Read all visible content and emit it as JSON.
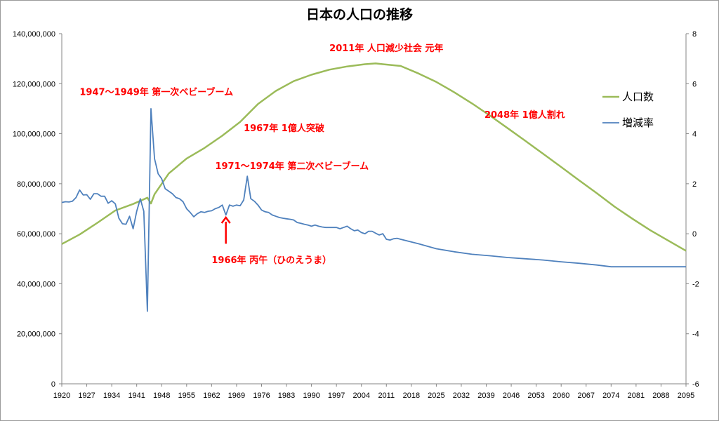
{
  "chart_data": {
    "type": "line",
    "title": "日本の人口の推移",
    "xlabel": "",
    "ylabel": "",
    "xlim": [
      1920,
      2095
    ],
    "ylim": [
      0,
      140000000
    ],
    "y2lim": [
      -6,
      8
    ],
    "x_ticks": [
      1920,
      1927,
      1934,
      1941,
      1948,
      1955,
      1962,
      1969,
      1976,
      1983,
      1990,
      1997,
      2004,
      2011,
      2018,
      2025,
      2032,
      2039,
      2046,
      2053,
      2060,
      2067,
      2074,
      2081,
      2088,
      2095
    ],
    "y_ticks": [
      {
        "v": 0,
        "label": "0"
      },
      {
        "v": 20000000,
        "label": "20,000,000"
      },
      {
        "v": 40000000,
        "label": "40,000,000"
      },
      {
        "v": 60000000,
        "label": "60,000,000"
      },
      {
        "v": 80000000,
        "label": "80,000,000"
      },
      {
        "v": 100000000,
        "label": "100,000,000"
      },
      {
        "v": 120000000,
        "label": "120,000,000"
      },
      {
        "v": 140000000,
        "label": "140,000,000"
      }
    ],
    "y2_ticks": [
      -6,
      -4,
      -2,
      0,
      2,
      4,
      6,
      8
    ],
    "grid": false,
    "legend_position": "right",
    "series": [
      {
        "name": "人口数",
        "axis": "left",
        "color": "#9bbb59",
        "points": [
          [
            1920,
            55900000
          ],
          [
            1925,
            59700000
          ],
          [
            1930,
            64400000
          ],
          [
            1935,
            69300000
          ],
          [
            1940,
            71900000
          ],
          [
            1944,
            74400000
          ],
          [
            1945,
            72100000
          ],
          [
            1946,
            75800000
          ],
          [
            1950,
            84100000
          ],
          [
            1955,
            90100000
          ],
          [
            1960,
            94300000
          ],
          [
            1965,
            99200000
          ],
          [
            1970,
            104700000
          ],
          [
            1972,
            107600000
          ],
          [
            1975,
            111900000
          ],
          [
            1980,
            117100000
          ],
          [
            1985,
            121000000
          ],
          [
            1990,
            123600000
          ],
          [
            1995,
            125600000
          ],
          [
            2000,
            126900000
          ],
          [
            2005,
            127800000
          ],
          [
            2008,
            128100000
          ],
          [
            2010,
            127800000
          ],
          [
            2015,
            127100000
          ],
          [
            2020,
            124100000
          ],
          [
            2025,
            120700000
          ],
          [
            2030,
            116600000
          ],
          [
            2035,
            112100000
          ],
          [
            2040,
            107300000
          ],
          [
            2045,
            102200000
          ],
          [
            2050,
            97100000
          ],
          [
            2055,
            91900000
          ],
          [
            2060,
            86700000
          ],
          [
            2065,
            81400000
          ],
          [
            2070,
            76200000
          ],
          [
            2075,
            70800000
          ],
          [
            2080,
            66000000
          ],
          [
            2085,
            61400000
          ],
          [
            2090,
            57300000
          ],
          [
            2095,
            53200000
          ]
        ]
      },
      {
        "name": "増減率",
        "axis": "right",
        "color": "#4f81bd",
        "points": [
          [
            1920,
            1.25
          ],
          [
            1921,
            1.28
          ],
          [
            1922,
            1.27
          ],
          [
            1923,
            1.3
          ],
          [
            1924,
            1.45
          ],
          [
            1925,
            1.75
          ],
          [
            1926,
            1.55
          ],
          [
            1927,
            1.56
          ],
          [
            1928,
            1.38
          ],
          [
            1929,
            1.6
          ],
          [
            1930,
            1.6
          ],
          [
            1931,
            1.5
          ],
          [
            1932,
            1.5
          ],
          [
            1933,
            1.22
          ],
          [
            1934,
            1.32
          ],
          [
            1935,
            1.2
          ],
          [
            1936,
            0.62
          ],
          [
            1937,
            0.4
          ],
          [
            1938,
            0.38
          ],
          [
            1939,
            0.7
          ],
          [
            1940,
            0.2
          ],
          [
            1941,
            0.9
          ],
          [
            1942,
            1.4
          ],
          [
            1943,
            0.9
          ],
          [
            1944,
            -3.1
          ],
          [
            1945,
            5.0
          ],
          [
            1946,
            3.0
          ],
          [
            1947,
            2.4
          ],
          [
            1948,
            2.2
          ],
          [
            1949,
            1.8
          ],
          [
            1950,
            1.7
          ],
          [
            1951,
            1.6
          ],
          [
            1952,
            1.45
          ],
          [
            1953,
            1.4
          ],
          [
            1954,
            1.28
          ],
          [
            1955,
            1.0
          ],
          [
            1956,
            0.85
          ],
          [
            1957,
            0.68
          ],
          [
            1958,
            0.8
          ],
          [
            1959,
            0.88
          ],
          [
            1960,
            0.85
          ],
          [
            1961,
            0.9
          ],
          [
            1962,
            0.92
          ],
          [
            1963,
            1.0
          ],
          [
            1964,
            1.05
          ],
          [
            1965,
            1.15
          ],
          [
            1966,
            0.75
          ],
          [
            1967,
            1.15
          ],
          [
            1968,
            1.1
          ],
          [
            1969,
            1.15
          ],
          [
            1970,
            1.12
          ],
          [
            1971,
            1.35
          ],
          [
            1972,
            2.3
          ],
          [
            1973,
            1.4
          ],
          [
            1974,
            1.3
          ],
          [
            1975,
            1.15
          ],
          [
            1976,
            0.95
          ],
          [
            1977,
            0.88
          ],
          [
            1978,
            0.85
          ],
          [
            1979,
            0.75
          ],
          [
            1980,
            0.7
          ],
          [
            1981,
            0.65
          ],
          [
            1982,
            0.62
          ],
          [
            1983,
            0.6
          ],
          [
            1984,
            0.58
          ],
          [
            1985,
            0.55
          ],
          [
            1986,
            0.45
          ],
          [
            1987,
            0.42
          ],
          [
            1988,
            0.38
          ],
          [
            1989,
            0.35
          ],
          [
            1990,
            0.3
          ],
          [
            1991,
            0.35
          ],
          [
            1992,
            0.3
          ],
          [
            1993,
            0.27
          ],
          [
            1994,
            0.25
          ],
          [
            1995,
            0.25
          ],
          [
            1996,
            0.25
          ],
          [
            1997,
            0.25
          ],
          [
            1998,
            0.2
          ],
          [
            1999,
            0.25
          ],
          [
            2000,
            0.3
          ],
          [
            2001,
            0.2
          ],
          [
            2002,
            0.12
          ],
          [
            2003,
            0.15
          ],
          [
            2004,
            0.05
          ],
          [
            2005,
            0.0
          ],
          [
            2006,
            0.1
          ],
          [
            2007,
            0.1
          ],
          [
            2008,
            0.02
          ],
          [
            2009,
            -0.05
          ],
          [
            2010,
            0.0
          ],
          [
            2011,
            -0.22
          ],
          [
            2012,
            -0.25
          ],
          [
            2013,
            -0.2
          ],
          [
            2014,
            -0.18
          ],
          [
            2015,
            -0.22
          ],
          [
            2020,
            -0.4
          ],
          [
            2025,
            -0.6
          ],
          [
            2030,
            -0.72
          ],
          [
            2035,
            -0.82
          ],
          [
            2040,
            -0.88
          ],
          [
            2045,
            -0.95
          ],
          [
            2050,
            -1.0
          ],
          [
            2055,
            -1.05
          ],
          [
            2060,
            -1.12
          ],
          [
            2065,
            -1.18
          ],
          [
            2070,
            -1.25
          ],
          [
            2074,
            -1.32
          ],
          [
            2080,
            -1.32
          ],
          [
            2090,
            -1.32
          ],
          [
            2095,
            -1.32
          ]
        ]
      }
    ],
    "annotations": [
      {
        "text": "2011年 人口減少社会 元年",
        "year": 2011,
        "value": 133000000,
        "anchor": "middle"
      },
      {
        "text": "1947〜1949年 第一次ベビーブーム",
        "year": 1925,
        "value": 115400000,
        "anchor": "start"
      },
      {
        "text": "2048年 1億人割れ",
        "year": 2038.5,
        "value": 106400000,
        "anchor": "start"
      },
      {
        "text": "1967年 1億人突破",
        "year": 1971,
        "value": 101000000,
        "anchor": "start"
      },
      {
        "text": "1971〜1974年 第二次ベビーブーム",
        "year": 1963,
        "value": 85900000,
        "anchor": "start"
      },
      {
        "text": "1966年 丙午（ひのえうま）",
        "year": 1962,
        "value": 48300000,
        "anchor": "start"
      }
    ],
    "arrow": {
      "year": 1966,
      "from_value": 56000000,
      "to_value": 66500000,
      "color": "#ff0000"
    }
  }
}
